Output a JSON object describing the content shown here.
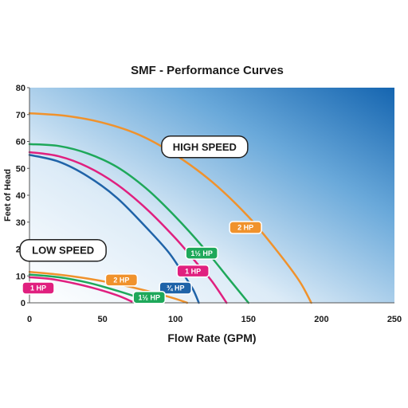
{
  "chart_data": {
    "type": "line",
    "title": "SMF - Performance Curves",
    "xlabel": "Flow Rate (GPM)",
    "ylabel": "Feet of Head",
    "xlim": [
      0,
      250
    ],
    "ylim": [
      0,
      80
    ],
    "x_ticks": [
      0,
      50,
      100,
      150,
      200,
      250
    ],
    "y_ticks": [
      0,
      10,
      20,
      30,
      40,
      50,
      60,
      70,
      80
    ],
    "grid": false,
    "background": "gradient-blue",
    "annotations": [
      {
        "text": "HIGH SPEED",
        "x": 120,
        "y": 58
      },
      {
        "text": "LOW SPEED",
        "x": 23,
        "y": 19.5
      }
    ],
    "series": [
      {
        "name": "2 HP",
        "group": "high",
        "color": "#f0922c",
        "label_pos": [
          148,
          28
        ],
        "points": [
          [
            0,
            70.5
          ],
          [
            25,
            69.5
          ],
          [
            50,
            67
          ],
          [
            75,
            62.5
          ],
          [
            100,
            55
          ],
          [
            125,
            45
          ],
          [
            150,
            32
          ],
          [
            170,
            19
          ],
          [
            185,
            8
          ],
          [
            193,
            0
          ]
        ]
      },
      {
        "name": "1½ HP",
        "group": "high",
        "color": "#1ea85a",
        "label_pos": [
          118,
          18.5
        ],
        "points": [
          [
            0,
            59
          ],
          [
            20,
            58.3
          ],
          [
            40,
            55.5
          ],
          [
            60,
            50.5
          ],
          [
            80,
            42.5
          ],
          [
            100,
            32
          ],
          [
            120,
            20
          ],
          [
            135,
            10
          ],
          [
            150,
            0
          ]
        ]
      },
      {
        "name": "1 HP",
        "group": "high",
        "color": "#e0207f",
        "label_pos": [
          112,
          11.8
        ],
        "points": [
          [
            0,
            56
          ],
          [
            20,
            54.5
          ],
          [
            40,
            50.5
          ],
          [
            60,
            44
          ],
          [
            80,
            35
          ],
          [
            100,
            24
          ],
          [
            115,
            14.5
          ],
          [
            125,
            8
          ],
          [
            135,
            0
          ]
        ]
      },
      {
        "name": "¾ HP",
        "group": "high",
        "color": "#1f63a8",
        "label_pos": [
          100,
          5.5
        ],
        "points": [
          [
            0,
            55
          ],
          [
            20,
            52.5
          ],
          [
            40,
            47
          ],
          [
            60,
            39
          ],
          [
            80,
            28
          ],
          [
            95,
            19
          ],
          [
            105,
            11
          ],
          [
            112,
            5
          ],
          [
            116,
            0
          ]
        ]
      },
      {
        "name": "2 HP",
        "group": "low",
        "color": "#f0922c",
        "label_pos": [
          63,
          8.5
        ],
        "points": [
          [
            0,
            11.5
          ],
          [
            20,
            10.5
          ],
          [
            40,
            9
          ],
          [
            60,
            7
          ],
          [
            80,
            4.5
          ],
          [
            100,
            1.5
          ],
          [
            108,
            0
          ]
        ]
      },
      {
        "name": "1½ HP",
        "group": "low",
        "color": "#1ea85a",
        "label_pos": [
          82,
          2
        ],
        "points": [
          [
            0,
            10.5
          ],
          [
            20,
            9.5
          ],
          [
            40,
            7.5
          ],
          [
            60,
            4.5
          ],
          [
            75,
            1.8
          ],
          [
            80,
            0
          ]
        ]
      },
      {
        "name": "1 HP",
        "group": "low",
        "color": "#e0207f",
        "label_pos": [
          6,
          5.5
        ],
        "points": [
          [
            0,
            9.5
          ],
          [
            15,
            8.8
          ],
          [
            30,
            7.3
          ],
          [
            45,
            5.3
          ],
          [
            60,
            2.8
          ],
          [
            70,
            0.5
          ]
        ]
      }
    ]
  }
}
